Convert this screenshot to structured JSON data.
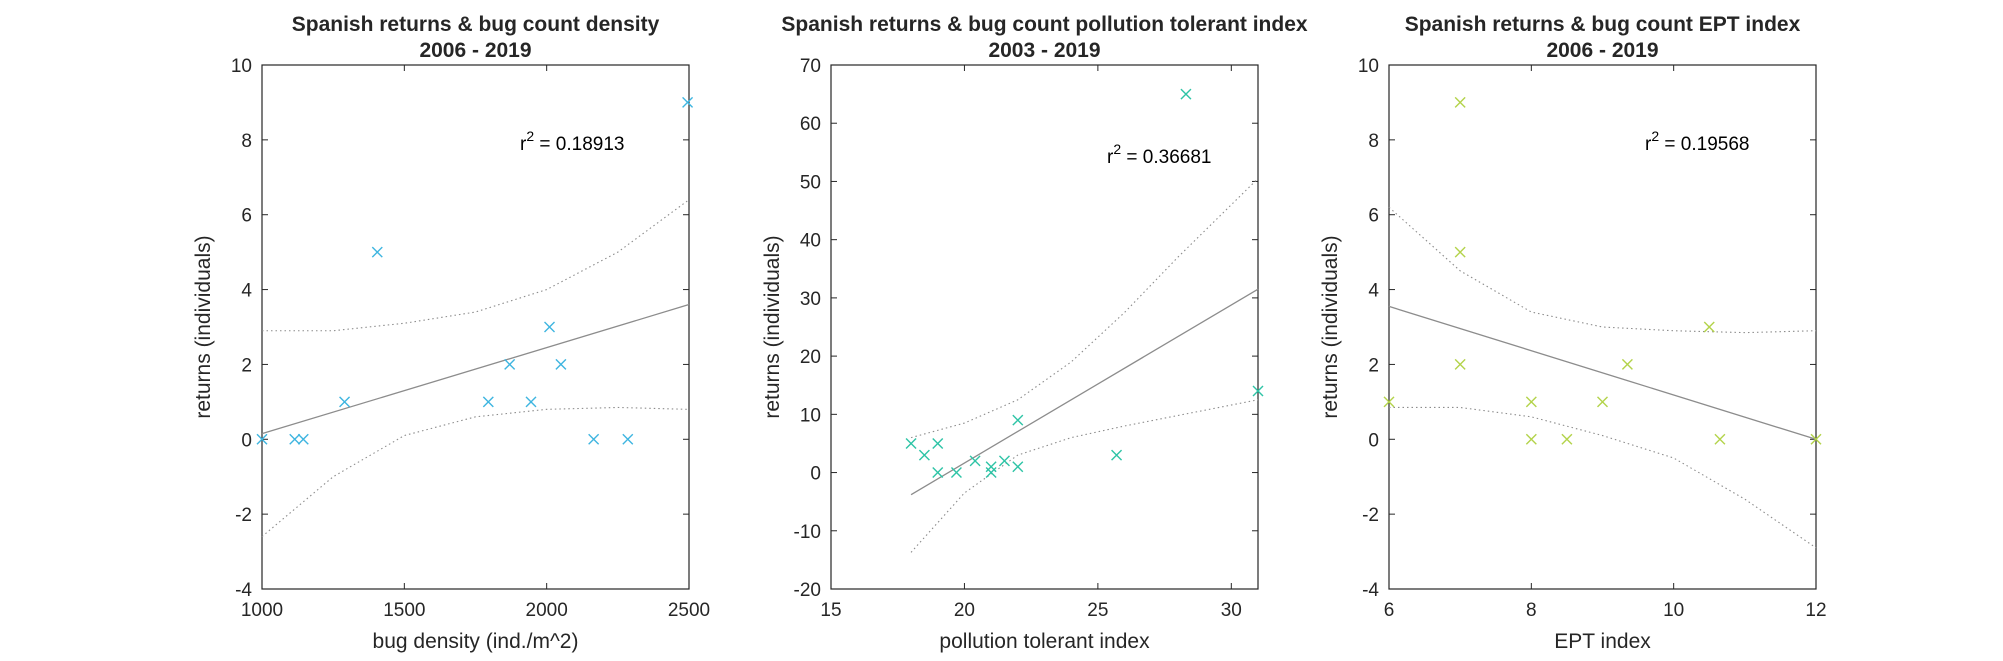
{
  "chart_data": [
    {
      "type": "scatter",
      "title": [
        "Spanish returns & bug count density",
        "2006 - 2019"
      ],
      "xlabel": "bug density (ind./m^2)",
      "ylabel": "returns (individuals)",
      "xlim": [
        1000,
        2500
      ],
      "ylim": [
        -4,
        10
      ],
      "xticks": [
        1000,
        1500,
        2000,
        2500
      ],
      "yticks": [
        -4,
        -2,
        0,
        2,
        4,
        6,
        8,
        10
      ],
      "marker_color": "#3EB5E0",
      "r2_prefix": "r",
      "r2_sup": "2",
      "r2_value": " = 0.18913",
      "points": {
        "x": [
          1000,
          1115,
          1145,
          1290,
          1405,
          1795,
          1870,
          1945,
          2010,
          2050,
          2165,
          2285,
          2495
        ],
        "y": [
          0,
          0,
          0,
          1,
          5,
          1,
          2,
          1,
          3,
          2,
          0,
          0,
          9
        ]
      },
      "fit": {
        "x": [
          1000,
          2500
        ],
        "y": [
          0.15,
          3.6
        ]
      },
      "ci_upper": {
        "x": [
          1000,
          1250,
          1500,
          1750,
          2000,
          2250,
          2500
        ],
        "y": [
          2.9,
          2.9,
          3.1,
          3.4,
          4.0,
          5.0,
          6.4
        ]
      },
      "ci_lower": {
        "x": [
          1000,
          1250,
          1500,
          1750,
          2000,
          2250,
          2500
        ],
        "y": [
          -2.6,
          -1.0,
          0.1,
          0.6,
          0.8,
          0.85,
          0.8
        ]
      }
    },
    {
      "type": "scatter",
      "title": [
        "Spanish returns & bug count pollution tolerant index",
        "2003 - 2019"
      ],
      "xlabel": "pollution tolerant index",
      "ylabel": "returns (individuals)",
      "xlim": [
        15,
        31
      ],
      "ylim": [
        -20,
        70
      ],
      "xticks": [
        15,
        20,
        25,
        30
      ],
      "yticks": [
        -20,
        -10,
        0,
        10,
        20,
        30,
        40,
        50,
        60,
        70
      ],
      "marker_color": "#2EC4A6",
      "r2_prefix": "r",
      "r2_sup": "2",
      "r2_value": " = 0.36681",
      "points": {
        "x": [
          18.0,
          18.5,
          19.0,
          19.0,
          19.7,
          20.4,
          21.0,
          21.0,
          21.5,
          22.0,
          22.0,
          25.7,
          28.3,
          31.0
        ],
        "y": [
          5,
          3,
          5,
          0,
          0,
          2,
          0,
          1,
          2,
          9,
          1,
          3,
          65,
          14
        ]
      },
      "fit": {
        "x": [
          18,
          31
        ],
        "y": [
          -3.8,
          31.5
        ]
      },
      "ci_upper": {
        "x": [
          18,
          20,
          22,
          24,
          26,
          28,
          31
        ],
        "y": [
          6.0,
          8.5,
          12.5,
          19.0,
          27.5,
          37.0,
          50.5
        ]
      },
      "ci_lower": {
        "x": [
          18,
          20,
          22,
          24,
          26,
          28,
          31
        ],
        "y": [
          -13.7,
          -3.5,
          3.0,
          6.0,
          8.0,
          9.8,
          12.5
        ]
      }
    },
    {
      "type": "scatter",
      "title": [
        "Spanish returns & bug count EPT index",
        "2006 - 2019"
      ],
      "xlabel": "EPT index",
      "ylabel": "returns (individuals)",
      "xlim": [
        6,
        12
      ],
      "ylim": [
        -4,
        10
      ],
      "xticks": [
        6,
        8,
        10,
        12
      ],
      "yticks": [
        -4,
        -2,
        0,
        2,
        4,
        6,
        8,
        10
      ],
      "marker_color": "#B3D34A",
      "r2_prefix": "r",
      "r2_sup": "2",
      "r2_value": " = 0.19568",
      "points": {
        "x": [
          6.0,
          7.0,
          7.0,
          7.0,
          8.0,
          8.0,
          8.5,
          9.0,
          9.35,
          10.5,
          10.65,
          12.0
        ],
        "y": [
          1,
          9,
          5,
          2,
          1,
          0,
          0,
          1,
          2,
          3,
          0,
          0
        ]
      },
      "fit": {
        "x": [
          6,
          12
        ],
        "y": [
          3.55,
          0
        ]
      },
      "ci_upper": {
        "x": [
          6,
          7,
          8,
          9,
          10,
          11,
          12
        ],
        "y": [
          6.2,
          4.5,
          3.4,
          3.0,
          2.9,
          2.85,
          2.9
        ]
      },
      "ci_lower": {
        "x": [
          6,
          7,
          8,
          9,
          10,
          11,
          12
        ],
        "y": [
          0.85,
          0.85,
          0.6,
          0.1,
          -0.5,
          -1.6,
          -2.9
        ]
      }
    }
  ]
}
